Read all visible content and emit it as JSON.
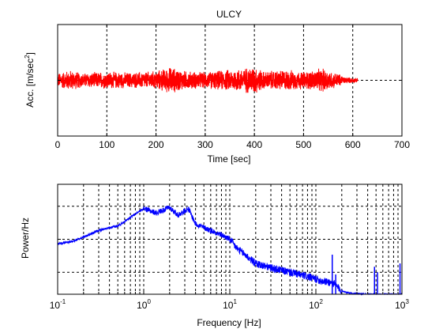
{
  "chart_data": [
    {
      "type": "line",
      "title": "ULCY",
      "xlabel": "Time [sec]",
      "ylabel": "Acc. [m/sec",
      "ylabel_sup": "2",
      "ylabel_close": "]",
      "xlim": [
        0,
        700
      ],
      "xticks": [
        0,
        100,
        200,
        300,
        400,
        500,
        600,
        700
      ],
      "xtick_labels": [
        "0",
        "100",
        "200",
        "300",
        "400",
        "500",
        "600",
        "700"
      ],
      "ylim": [
        -1,
        1
      ],
      "yticks": [
        -1,
        0,
        1
      ],
      "grid": true,
      "series": [
        {
          "color": "#ff0000",
          "x_range": [
            0,
            610
          ],
          "envelope": [
            [
              0,
              0.14
            ],
            [
              25,
              0.2
            ],
            [
              50,
              0.14
            ],
            [
              100,
              0.17
            ],
            [
              150,
              0.15
            ],
            [
              200,
              0.18
            ],
            [
              230,
              0.26
            ],
            [
              260,
              0.18
            ],
            [
              300,
              0.16
            ],
            [
              340,
              0.2
            ],
            [
              380,
              0.24
            ],
            [
              400,
              0.28
            ],
            [
              420,
              0.17
            ],
            [
              460,
              0.21
            ],
            [
              500,
              0.17
            ],
            [
              540,
              0.23
            ],
            [
              560,
              0.16
            ],
            [
              575,
              0.12
            ],
            [
              580,
              0.07
            ],
            [
              610,
              0.04
            ]
          ]
        }
      ]
    },
    {
      "type": "line",
      "xlabel": "Frequency [Hz]",
      "ylabel": "Power/Hz",
      "xscale": "log",
      "xlim": [
        0.1,
        1000
      ],
      "xticks": [
        0.1,
        1,
        10,
        100,
        1000
      ],
      "xtick_base": "10",
      "xtick_exponents": [
        "-1",
        "0",
        "1",
        "2",
        "3"
      ],
      "ylim": [
        0,
        1
      ],
      "yticks": [
        0.5,
        1
      ],
      "grid": true,
      "series": [
        {
          "color": "#0000ff",
          "points": [
            [
              0.1,
              0.46
            ],
            [
              0.15,
              0.48
            ],
            [
              0.2,
              0.52
            ],
            [
              0.3,
              0.58
            ],
            [
              0.5,
              0.62
            ],
            [
              0.7,
              0.7
            ],
            [
              1.0,
              0.78
            ],
            [
              1.4,
              0.74
            ],
            [
              2.0,
              0.79
            ],
            [
              2.5,
              0.72
            ],
            [
              3.3,
              0.78
            ],
            [
              4.0,
              0.64
            ],
            [
              6.0,
              0.58
            ],
            [
              8.0,
              0.54
            ],
            [
              10.0,
              0.5
            ],
            [
              12.0,
              0.42
            ],
            [
              15.0,
              0.36
            ],
            [
              20.0,
              0.28
            ],
            [
              30.0,
              0.24
            ],
            [
              50.0,
              0.2
            ],
            [
              80.0,
              0.16
            ],
            [
              120.0,
              0.12
            ],
            [
              160.0,
              0.1
            ],
            [
              200.0,
              0.03
            ],
            [
              250.0,
              0.01
            ],
            [
              400.0,
              0.0
            ],
            [
              1000.0,
              0.0
            ]
          ],
          "spikes": [
            [
              155,
              0.36
            ],
            [
              170,
              0.18
            ],
            [
              480,
              0.25
            ],
            [
              520,
              0.2
            ],
            [
              950,
              0.28
            ]
          ]
        }
      ]
    }
  ]
}
